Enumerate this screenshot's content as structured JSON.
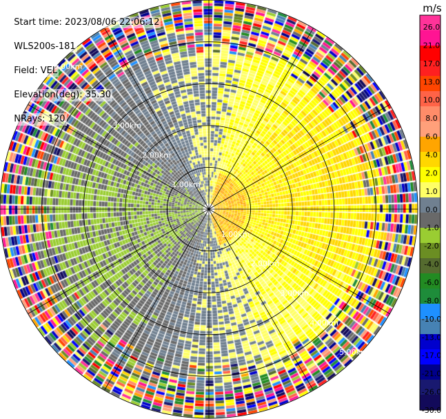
{
  "header": {
    "start_time": "Start time: 2023/08/06 22:06:12",
    "instrument": "WLS200s-181",
    "field": "Field: VEL",
    "elevation": "Elevation(deg): 35.30",
    "nrays": "NRays: 120"
  },
  "chart_data": {
    "type": "heatmap",
    "subtype": "polar-ppi",
    "field": "VEL",
    "nrays": 120,
    "elevation_deg": 35.3,
    "range_rings_km": [
      1.0,
      2.0,
      3.0,
      4.0,
      5.0
    ],
    "ring_labels": [
      "1.00km",
      "2.00km",
      "3.00km",
      "4.00km",
      "5.00km"
    ],
    "max_range_km": 5.0,
    "radial_lines_deg": [
      0,
      30,
      60,
      90,
      120,
      150,
      180,
      210,
      240,
      270,
      300,
      330
    ],
    "colorbar": {
      "unit": "m/s",
      "ticks": [
        "26.0",
        "21.0",
        "17.0",
        "13.0",
        "10.0",
        "8.0",
        "6.0",
        "4.0",
        "2.0",
        "1.0",
        "0.0",
        "-1.0",
        "-2.0",
        "-4.0",
        "-6.0",
        "-8.0",
        "-10.0",
        "-13.0",
        "-17.0",
        "-21.0",
        "-26.0",
        "-30.0"
      ],
      "colors": [
        "#ff3399",
        "#ff1493",
        "#ff0000",
        "#ff2020",
        "#ff4500",
        "#ff6347",
        "#ff8c69",
        "#ffa07a",
        "#ffa500",
        "#ffd700",
        "#ffff00",
        "#ffff66",
        "#708090",
        "#696969",
        "#9acd32",
        "#6b8e23",
        "#556b2f",
        "#228b22",
        "#1e8c3a",
        "#1e90ff",
        "#4682b4",
        "#0000cd",
        "#0000ff",
        "#00008b",
        "#191970",
        "#120a5a"
      ],
      "min": -30.0,
      "max": 26.0
    },
    "field_pattern": {
      "near_range_west_side": "negative (green, -2 to -6 m/s)",
      "near_range_east_side": "positive (yellow/orange, 2 to 6 m/s)",
      "far_range": "noisy random colors"
    }
  }
}
